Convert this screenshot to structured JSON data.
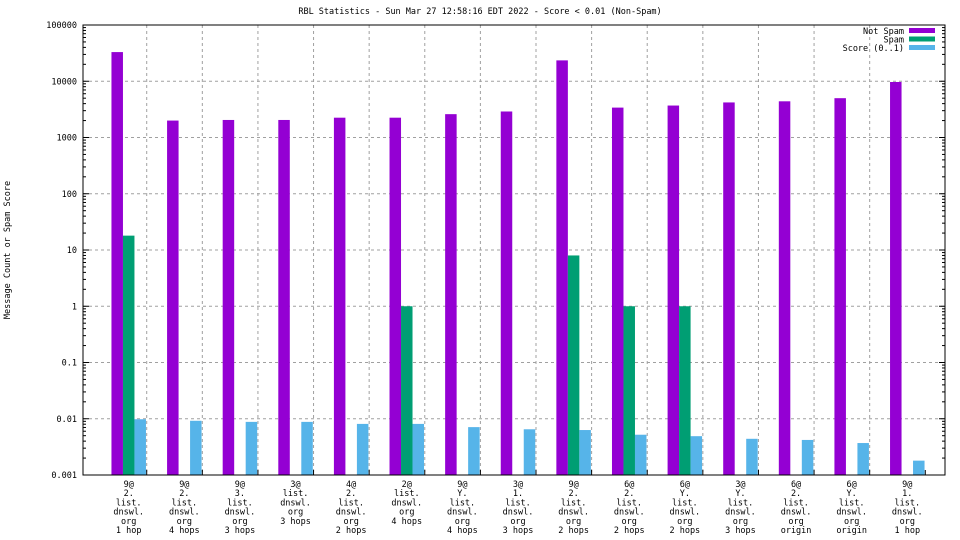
{
  "chart_data": {
    "type": "bar",
    "title": "RBL Statistics - Sun Mar 27 12:58:16 EDT 2022 - Score < 0.01 (Non-Spam)",
    "xlabel": "",
    "ylabel": "Message Count or Spam Score",
    "yscale": "log",
    "ylim": [
      0.001,
      100000
    ],
    "yticks": [
      "100000",
      "10000",
      "1000",
      "100",
      "10",
      "1",
      "0.1",
      "0.01",
      "0.001"
    ],
    "yticks_values": [
      100000,
      10000,
      1000,
      100,
      10,
      1,
      0.1,
      0.01,
      0.001
    ],
    "grid": true,
    "legend_position": "top-right",
    "categories": [
      [
        "9@",
        "2.",
        "list.",
        "dnswl.",
        "org",
        "1 hop"
      ],
      [
        "9@",
        "2.",
        "list.",
        "dnswl.",
        "org",
        "4 hops"
      ],
      [
        "9@",
        "3.",
        "list.",
        "dnswl.",
        "org",
        "3 hops"
      ],
      [
        "3@",
        "list.",
        "dnswl.",
        "org",
        "3 hops"
      ],
      [
        "4@",
        "2.",
        "list.",
        "dnswl.",
        "org",
        "2 hops"
      ],
      [
        "2@",
        "list.",
        "dnswl.",
        "org",
        "4 hops"
      ],
      [
        "9@",
        "Y.",
        "list.",
        "dnswl.",
        "org",
        "4 hops"
      ],
      [
        "3@",
        "1.",
        "list.",
        "dnswl.",
        "org",
        "3 hops"
      ],
      [
        "9@",
        "2.",
        "list.",
        "dnswl.",
        "org",
        "2 hops"
      ],
      [
        "6@",
        "2.",
        "list.",
        "dnswl.",
        "org",
        "2 hops"
      ],
      [
        "6@",
        "Y.",
        "list.",
        "dnswl.",
        "org",
        "2 hops"
      ],
      [
        "3@",
        "Y.",
        "list.",
        "dnswl.",
        "org",
        "3 hops"
      ],
      [
        "6@",
        "2.",
        "list.",
        "dnswl.",
        "org",
        "origin"
      ],
      [
        "6@",
        "Y.",
        "list.",
        "dnswl.",
        "org",
        "origin"
      ],
      [
        "9@",
        "1.",
        "list.",
        "dnswl.",
        "org",
        "1 hop"
      ]
    ],
    "series": [
      {
        "name": "Not Spam",
        "color": "#9400d3",
        "values": [
          33000,
          2000,
          2050,
          2050,
          2250,
          2250,
          2600,
          2900,
          23500,
          3400,
          3700,
          4200,
          4400,
          5000,
          9700
        ]
      },
      {
        "name": "Spam",
        "color": "#009e73",
        "values": [
          18,
          null,
          null,
          null,
          null,
          1,
          null,
          null,
          8,
          1,
          1,
          null,
          null,
          null,
          null
        ]
      },
      {
        "name": "Score (0..1)",
        "color": "#56b4e9",
        "values": [
          0.0098,
          0.0092,
          0.0088,
          0.0088,
          0.0081,
          0.0081,
          0.0071,
          0.0065,
          0.0063,
          0.0052,
          0.0049,
          0.0044,
          0.0042,
          0.0037,
          0.0018
        ]
      }
    ]
  }
}
